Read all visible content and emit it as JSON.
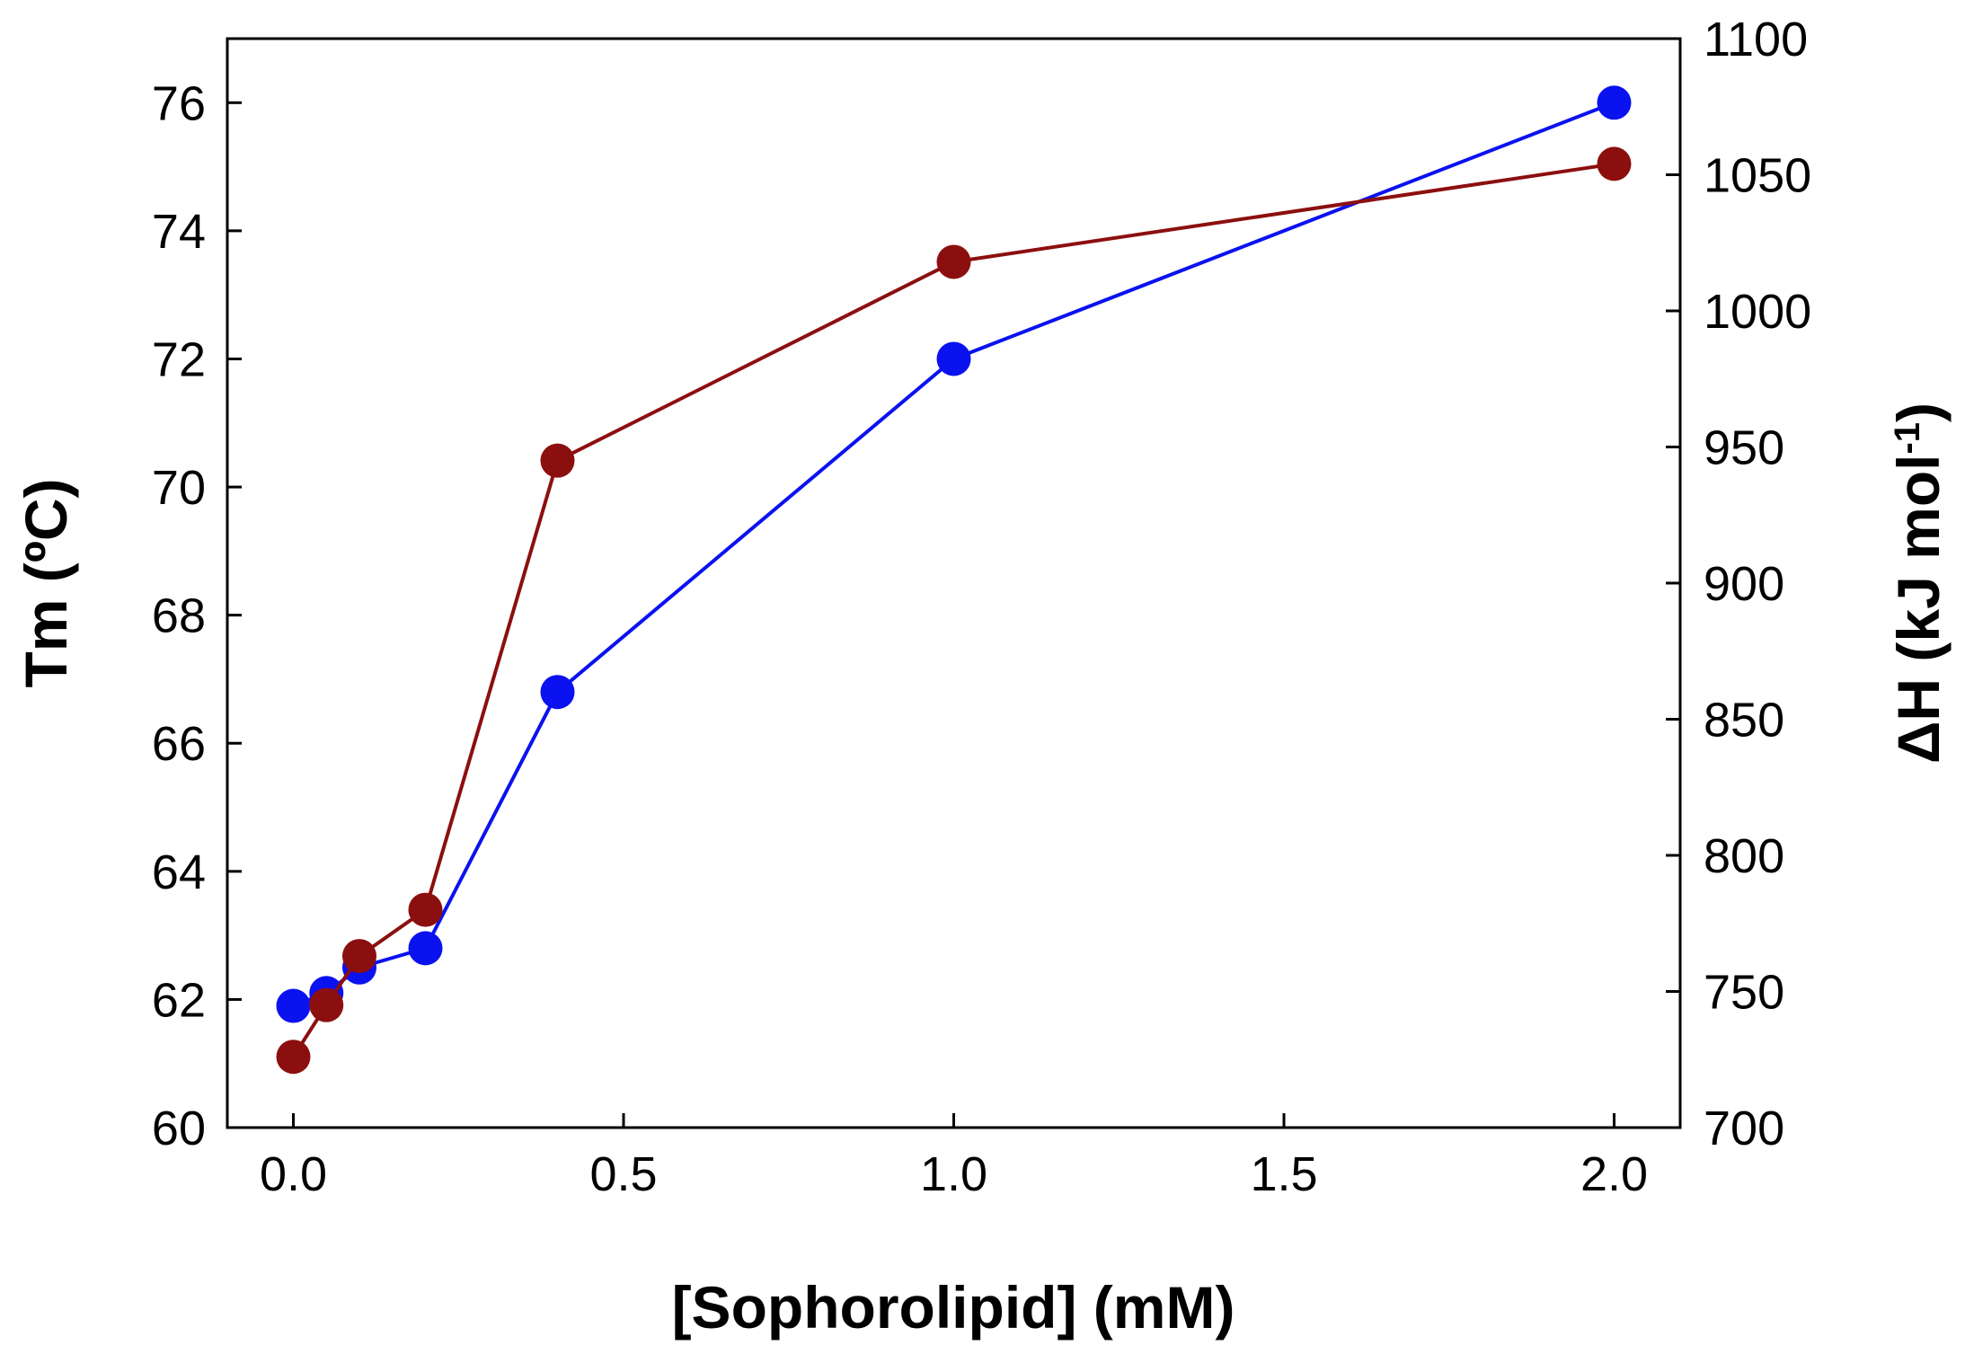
{
  "chart_data": {
    "type": "line",
    "xlabel": "[Sophorolipid] (mM)",
    "ylabel_left": "Tm (ºC)",
    "ylabel_right": {
      "main": "ΔH (kJ mol",
      "sup": "-1",
      "close": ")"
    },
    "xlim": [
      -0.1,
      2.1
    ],
    "ylim_left": [
      60,
      77
    ],
    "ylim_right": [
      700,
      1100
    ],
    "x_ticks": [
      "0.0",
      "0.5",
      "1.0",
      "1.5",
      "2.0"
    ],
    "y_left_ticks": [
      "60",
      "62",
      "64",
      "66",
      "68",
      "70",
      "72",
      "74",
      "76"
    ],
    "y_right_ticks": [
      "700",
      "750",
      "800",
      "850",
      "900",
      "950",
      "1000",
      "1050",
      "1100"
    ],
    "grid": false,
    "series": [
      {
        "axis": "left",
        "color": "#0a12f0",
        "points": [
          {
            "x": 0.0,
            "y": 61.9
          },
          {
            "x": 0.05,
            "y": 62.1
          },
          {
            "x": 0.1,
            "y": 62.5
          },
          {
            "x": 0.2,
            "y": 62.8
          },
          {
            "x": 0.4,
            "y": 66.8
          },
          {
            "x": 1.0,
            "y": 72.0
          },
          {
            "x": 2.0,
            "y": 76.0
          }
        ]
      },
      {
        "axis": "right",
        "color": "#8c0f0f",
        "points": [
          {
            "x": 0.0,
            "y": 726
          },
          {
            "x": 0.05,
            "y": 745
          },
          {
            "x": 0.1,
            "y": 763
          },
          {
            "x": 0.2,
            "y": 780
          },
          {
            "x": 0.4,
            "y": 945
          },
          {
            "x": 1.0,
            "y": 1018
          },
          {
            "x": 2.0,
            "y": 1054
          }
        ]
      }
    ]
  }
}
